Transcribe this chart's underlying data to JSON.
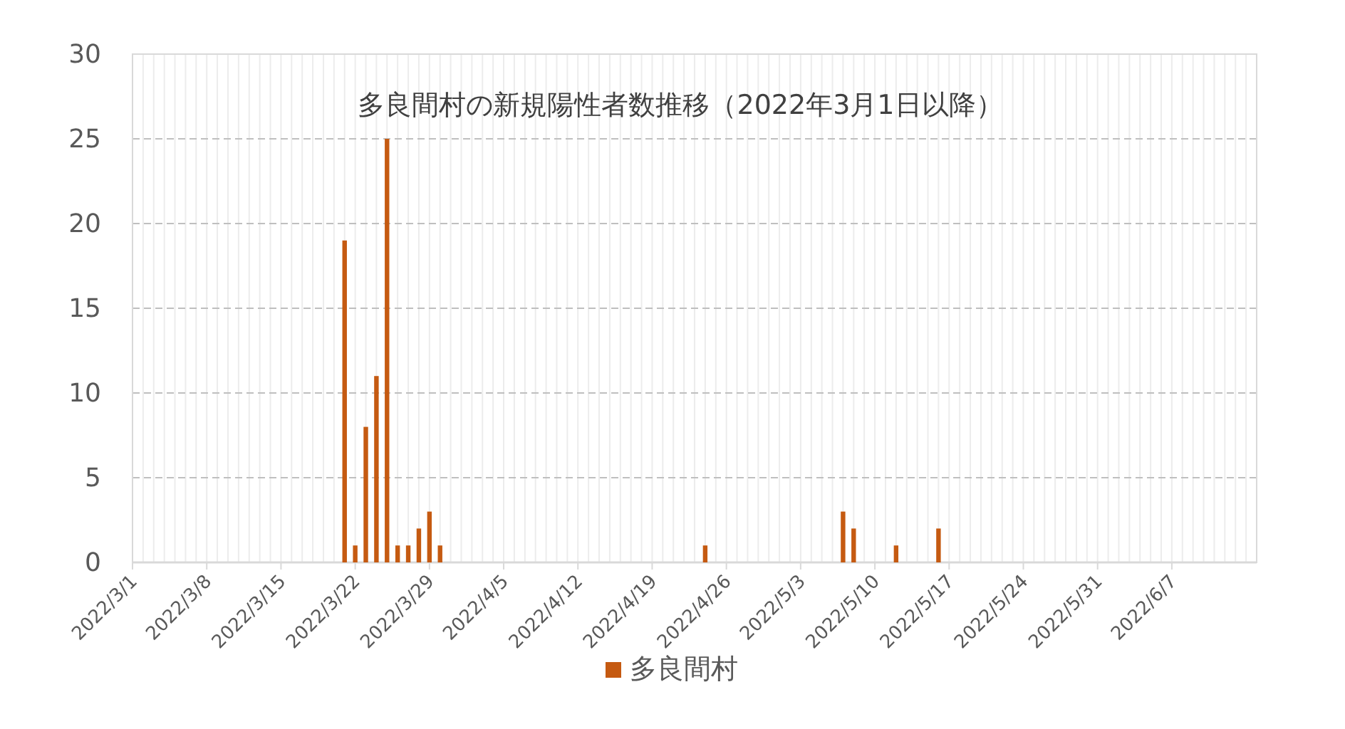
{
  "chart_data": {
    "type": "bar",
    "title": "多良間村の新規陽性者数推移（2022年3月1日以降）",
    "x": [
      "2022-03-21",
      "2022-03-22",
      "2022-03-23",
      "2022-03-24",
      "2022-03-25",
      "2022-03-26",
      "2022-03-27",
      "2022-03-28",
      "2022-03-29",
      "2022-03-30",
      "2022-04-24",
      "2022-05-07",
      "2022-05-08",
      "2022-05-12",
      "2022-05-16"
    ],
    "series": [
      {
        "name": "多良間村",
        "color": "#c55a11",
        "values": [
          19,
          1,
          8,
          11,
          25,
          1,
          1,
          2,
          3,
          1,
          1,
          3,
          2,
          1,
          2
        ]
      }
    ],
    "xlim": [
      "2022-03-01",
      "2022-06-15"
    ],
    "xticks": [
      {
        "value": "2022-03-01",
        "label": "2022/3/1"
      },
      {
        "value": "2022-03-08",
        "label": "2022/3/8"
      },
      {
        "value": "2022-03-15",
        "label": "2022/3/15"
      },
      {
        "value": "2022-03-22",
        "label": "2022/3/22"
      },
      {
        "value": "2022-03-29",
        "label": "2022/3/29"
      },
      {
        "value": "2022-04-05",
        "label": "2022/4/5"
      },
      {
        "value": "2022-04-12",
        "label": "2022/4/12"
      },
      {
        "value": "2022-04-19",
        "label": "2022/4/19"
      },
      {
        "value": "2022-04-26",
        "label": "2022/4/26"
      },
      {
        "value": "2022-05-03",
        "label": "2022/5/3"
      },
      {
        "value": "2022-05-10",
        "label": "2022/5/10"
      },
      {
        "value": "2022-05-17",
        "label": "2022/5/17"
      },
      {
        "value": "2022-05-24",
        "label": "2022/5/24"
      },
      {
        "value": "2022-05-31",
        "label": "2022/5/31"
      },
      {
        "value": "2022-06-07",
        "label": "2022/6/7"
      }
    ],
    "ylim": [
      0,
      30
    ],
    "yticks": [
      0,
      5,
      10,
      15,
      20,
      25,
      30
    ],
    "grid": true,
    "legend": "bottom"
  }
}
